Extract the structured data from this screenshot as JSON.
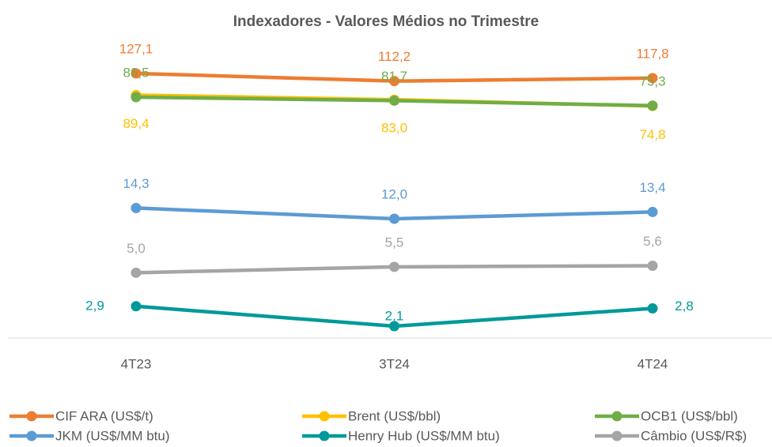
{
  "chart_data": {
    "type": "line",
    "title": "Indexadores  - Valores Médios no Trimestre",
    "categories": [
      "4T23",
      "3T24",
      "4T24"
    ],
    "log_scale": true,
    "ylim": [
      1.8,
      160
    ],
    "series": [
      {
        "name": "CIF ARA (US$/t)",
        "color": "#ED7D31",
        "values": [
          127.1,
          112.2,
          117.8
        ],
        "value_labels": [
          "127,1",
          "112,2",
          "117,8"
        ]
      },
      {
        "name": "Brent (US$/bbl)",
        "color": "#FFC000",
        "values": [
          89.4,
          83.0,
          74.8
        ],
        "value_labels": [
          "89,4",
          "83,0",
          "74,8"
        ]
      },
      {
        "name": "OCB1 (US$/bbl)",
        "color": "#70AD47",
        "values": [
          86.5,
          81.7,
          75.3
        ],
        "value_labels": [
          "86,5",
          "81,7",
          "75,3"
        ]
      },
      {
        "name": "JKM (US$/MM btu)",
        "color": "#5B9BD5",
        "values": [
          14.3,
          12.0,
          13.4
        ],
        "value_labels": [
          "14,3",
          "12,0",
          "13,4"
        ]
      },
      {
        "name": "Henry Hub (US$/MM btu)",
        "color": "#009999",
        "values": [
          2.9,
          2.1,
          2.8
        ],
        "value_labels": [
          "2,9",
          "2,1",
          "2,8"
        ]
      },
      {
        "name": "Câmbio (US$/R$)",
        "color": "#A5A5A5",
        "values": [
          5.0,
          5.5,
          5.6
        ],
        "value_labels": [
          "5,0",
          "5,5",
          "5,6"
        ]
      }
    ]
  }
}
